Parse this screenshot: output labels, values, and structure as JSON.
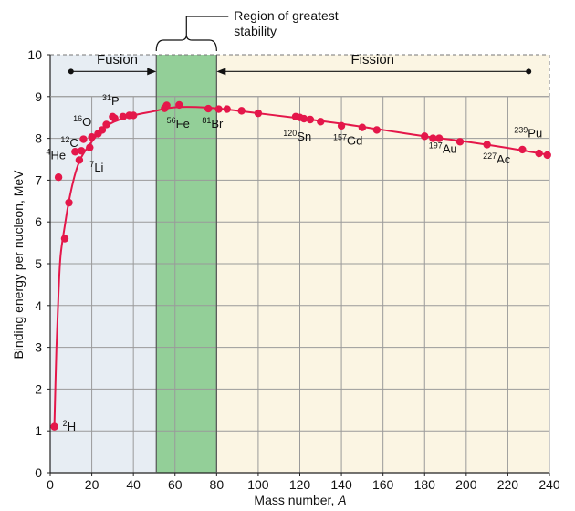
{
  "chart_data": {
    "type": "scatter",
    "xlabel": "Mass number,",
    "xlabel_italic": "A",
    "ylabel": "Binding energy per nucleon, MeV",
    "xlim": [
      0,
      240
    ],
    "ylim": [
      0,
      10
    ],
    "xticks": [
      "0",
      "20",
      "40",
      "60",
      "80",
      "100",
      "120",
      "140",
      "160",
      "180",
      "200",
      "220",
      "240"
    ],
    "yticks": [
      "0",
      "1",
      "2",
      "3",
      "4",
      "5",
      "6",
      "7",
      "8",
      "9",
      "10"
    ],
    "regions": {
      "fusion": {
        "label": "Fusion",
        "x": [
          0,
          51
        ],
        "color": "#e7edf3"
      },
      "stability": {
        "label": "Region of greatest stability",
        "x": [
          51,
          80
        ],
        "color": "#93cf98"
      },
      "fission": {
        "label": "Fission",
        "x": [
          80,
          240
        ],
        "color": "#fbf5e3"
      }
    },
    "arrows": {
      "fusion_range": [
        10,
        51
      ],
      "fission_range": [
        80,
        230
      ],
      "y": 9.6
    },
    "curve_color": "#e4174a",
    "points": [
      {
        "x": 2,
        "y": 1.1
      },
      {
        "x": 4,
        "y": 7.07
      },
      {
        "x": 7,
        "y": 5.6
      },
      {
        "x": 9,
        "y": 6.46
      },
      {
        "x": 12,
        "y": 7.68
      },
      {
        "x": 14,
        "y": 7.48
      },
      {
        "x": 15,
        "y": 7.7
      },
      {
        "x": 16,
        "y": 7.98
      },
      {
        "x": 19,
        "y": 7.78
      },
      {
        "x": 20,
        "y": 8.03
      },
      {
        "x": 23,
        "y": 8.11
      },
      {
        "x": 25,
        "y": 8.2
      },
      {
        "x": 27,
        "y": 8.33
      },
      {
        "x": 30,
        "y": 8.52
      },
      {
        "x": 31,
        "y": 8.48
      },
      {
        "x": 35,
        "y": 8.52
      },
      {
        "x": 38,
        "y": 8.55
      },
      {
        "x": 40,
        "y": 8.55
      },
      {
        "x": 55,
        "y": 8.72
      },
      {
        "x": 56,
        "y": 8.79
      },
      {
        "x": 62,
        "y": 8.8
      },
      {
        "x": 76,
        "y": 8.71
      },
      {
        "x": 81,
        "y": 8.7
      },
      {
        "x": 85,
        "y": 8.7
      },
      {
        "x": 92,
        "y": 8.66
      },
      {
        "x": 100,
        "y": 8.6
      },
      {
        "x": 118,
        "y": 8.52
      },
      {
        "x": 120,
        "y": 8.5
      },
      {
        "x": 122,
        "y": 8.47
      },
      {
        "x": 125,
        "y": 8.45
      },
      {
        "x": 130,
        "y": 8.4
      },
      {
        "x": 140,
        "y": 8.3
      },
      {
        "x": 150,
        "y": 8.26
      },
      {
        "x": 157,
        "y": 8.2
      },
      {
        "x": 180,
        "y": 8.05
      },
      {
        "x": 184,
        "y": 8.0
      },
      {
        "x": 187,
        "y": 8.0
      },
      {
        "x": 197,
        "y": 7.92
      },
      {
        "x": 210,
        "y": 7.85
      },
      {
        "x": 227,
        "y": 7.73
      },
      {
        "x": 235,
        "y": 7.64
      },
      {
        "x": 239,
        "y": 7.6
      }
    ],
    "curve": [
      [
        2,
        1.1
      ],
      [
        3,
        3.0
      ],
      [
        4,
        4.3
      ],
      [
        5,
        5.2
      ],
      [
        7,
        5.9
      ],
      [
        9,
        6.5
      ],
      [
        12,
        7.15
      ],
      [
        15,
        7.55
      ],
      [
        20,
        7.92
      ],
      [
        25,
        8.2
      ],
      [
        30,
        8.38
      ],
      [
        40,
        8.55
      ],
      [
        50,
        8.65
      ],
      [
        56,
        8.72
      ],
      [
        62,
        8.75
      ],
      [
        70,
        8.75
      ],
      [
        80,
        8.72
      ],
      [
        100,
        8.6
      ],
      [
        120,
        8.48
      ],
      [
        140,
        8.35
      ],
      [
        160,
        8.2
      ],
      [
        180,
        8.05
      ],
      [
        200,
        7.92
      ],
      [
        220,
        7.77
      ],
      [
        240,
        7.6
      ]
    ],
    "annotations": [
      {
        "sup": "2",
        "sym": "H",
        "x": 6,
        "y": 1.0
      },
      {
        "sup": "4",
        "sym": "He",
        "x": -2,
        "y": 7.5
      },
      {
        "sup": "7",
        "sym": "Li",
        "x": 19,
        "y": 7.2
      },
      {
        "sup": "12",
        "sym": "C",
        "x": 5,
        "y": 7.8
      },
      {
        "sup": "16",
        "sym": "O",
        "x": 11,
        "y": 8.3
      },
      {
        "sup": "31",
        "sym": "P",
        "x": 25,
        "y": 8.8
      },
      {
        "sup": "56",
        "sym": "Fe",
        "x": 56,
        "y": 8.25
      },
      {
        "sup": "81",
        "sym": "Br",
        "x": 73,
        "y": 8.25
      },
      {
        "sup": "120",
        "sym": "Sn",
        "x": 112,
        "y": 7.95
      },
      {
        "sup": "157",
        "sym": "Gd",
        "x": 136,
        "y": 7.85
      },
      {
        "sup": "197",
        "sym": "Au",
        "x": 182,
        "y": 7.65
      },
      {
        "sup": "227",
        "sym": "Ac",
        "x": 208,
        "y": 7.4
      },
      {
        "sup": "239",
        "sym": "Pu",
        "x": 223,
        "y": 8.02
      }
    ]
  }
}
